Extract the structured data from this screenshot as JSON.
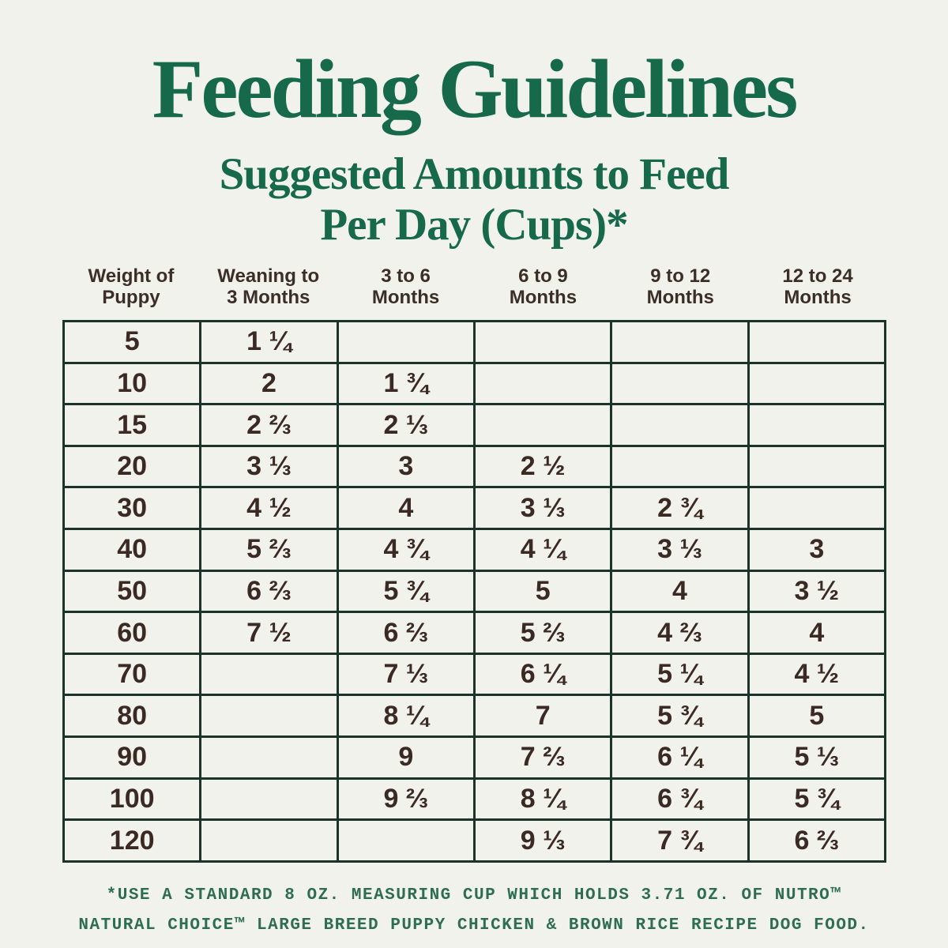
{
  "colors": {
    "background": "#f2f2ec",
    "title_green": "#16694a",
    "table_border_green": "#1c3329",
    "cell_text_brown": "#3a2a23",
    "footnote_green": "#2e6d52"
  },
  "chart_data": {
    "type": "table",
    "title": "Feeding Guidelines",
    "subtitle_line1": "Suggested Amounts to Feed",
    "subtitle_line2": "Per Day (Cups)*",
    "columns": [
      {
        "line1": "Weight of",
        "line2": "Puppy"
      },
      {
        "line1": "Weaning to",
        "line2": "3 Months"
      },
      {
        "line1": "3 to 6",
        "line2": "Months"
      },
      {
        "line1": "6 to 9",
        "line2": "Months"
      },
      {
        "line1": "9 to 12",
        "line2": "Months"
      },
      {
        "line1": "12 to 24",
        "line2": "Months"
      }
    ],
    "rows": [
      {
        "weight": "5",
        "values": [
          "1 ¼",
          "",
          "",
          "",
          ""
        ]
      },
      {
        "weight": "10",
        "values": [
          "2",
          "1 ¾",
          "",
          "",
          ""
        ]
      },
      {
        "weight": "15",
        "values": [
          "2 ⅔",
          "2 ⅓",
          "",
          "",
          ""
        ]
      },
      {
        "weight": "20",
        "values": [
          "3 ⅓",
          "3",
          "2 ½",
          "",
          ""
        ]
      },
      {
        "weight": "30",
        "values": [
          "4 ½",
          "4",
          "3 ⅓",
          "2 ¾",
          ""
        ]
      },
      {
        "weight": "40",
        "values": [
          "5 ⅔",
          "4 ¾",
          "4 ¼",
          "3 ⅓",
          "3"
        ]
      },
      {
        "weight": "50",
        "values": [
          "6 ⅔",
          "5 ¾",
          "5",
          "4",
          "3 ½"
        ]
      },
      {
        "weight": "60",
        "values": [
          "7 ½",
          "6 ⅔",
          "5 ⅔",
          "4 ⅔",
          "4"
        ]
      },
      {
        "weight": "70",
        "values": [
          "",
          "7 ⅓",
          "6 ¼",
          "5 ¼",
          "4 ½"
        ]
      },
      {
        "weight": "80",
        "values": [
          "",
          "8 ¼",
          "7",
          "5 ¾",
          "5"
        ]
      },
      {
        "weight": "90",
        "values": [
          "",
          "9",
          "7 ⅔",
          "6 ¼",
          "5 ⅓"
        ]
      },
      {
        "weight": "100",
        "values": [
          "",
          "9 ⅔",
          "8 ¼",
          "6 ¾",
          "5 ¾"
        ]
      },
      {
        "weight": "120",
        "values": [
          "",
          "",
          "9 ⅓",
          "7 ¾",
          "6 ⅔"
        ]
      }
    ],
    "footnote_line1": "*USE A STANDARD 8 OZ. MEASURING CUP WHICH HOLDS 3.71 OZ. OF NUTRO™",
    "footnote_line2": "NATURAL CHOICE™ LARGE BREED PUPPY CHICKEN & BROWN RICE RECIPE DOG FOOD."
  }
}
